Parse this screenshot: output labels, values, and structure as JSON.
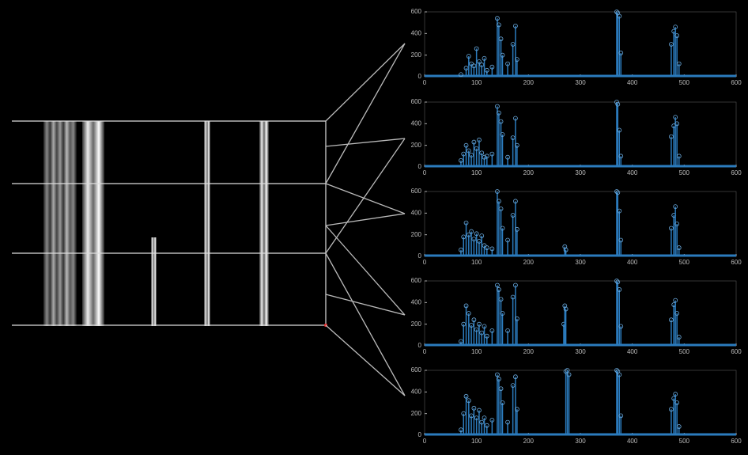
{
  "chart_data": [
    {
      "type": "stem",
      "color": "#2b7bbd",
      "x": [
        70,
        80,
        85,
        90,
        95,
        100,
        105,
        110,
        115,
        120,
        130,
        140,
        143,
        147,
        150,
        160,
        170,
        175,
        178,
        370,
        372,
        375,
        378,
        475,
        480,
        483,
        486,
        490
      ],
      "values": [
        20,
        80,
        190,
        120,
        100,
        260,
        140,
        110,
        170,
        60,
        90,
        540,
        480,
        350,
        200,
        120,
        300,
        470,
        160,
        600,
        590,
        560,
        220,
        300,
        420,
        460,
        380,
        120
      ],
      "xlim": [
        0,
        600
      ],
      "ylim": [
        0,
        600
      ],
      "xticks": [
        0,
        100,
        200,
        300,
        400,
        500,
        600
      ],
      "yticks": [
        0,
        200,
        400,
        600
      ]
    },
    {
      "type": "stem",
      "color": "#2b7bbd",
      "x": [
        70,
        75,
        80,
        85,
        90,
        95,
        100,
        105,
        110,
        115,
        120,
        130,
        140,
        143,
        147,
        150,
        160,
        170,
        175,
        178,
        370,
        372,
        375,
        378,
        475,
        480,
        483,
        486,
        490
      ],
      "values": [
        60,
        120,
        200,
        150,
        110,
        230,
        170,
        250,
        130,
        90,
        100,
        120,
        560,
        500,
        420,
        300,
        90,
        270,
        450,
        200,
        600,
        580,
        340,
        100,
        280,
        380,
        460,
        400,
        100
      ],
      "xlim": [
        0,
        600
      ],
      "ylim": [
        0,
        600
      ],
      "xticks": [
        0,
        100,
        200,
        300,
        400,
        500,
        600
      ],
      "yticks": [
        0,
        200,
        400,
        600
      ]
    },
    {
      "type": "stem",
      "color": "#2b7bbd",
      "x": [
        70,
        75,
        80,
        85,
        90,
        95,
        100,
        105,
        110,
        115,
        120,
        130,
        140,
        143,
        147,
        150,
        160,
        170,
        175,
        178,
        270,
        272,
        370,
        372,
        375,
        378,
        475,
        480,
        483,
        486,
        490
      ],
      "values": [
        60,
        180,
        310,
        200,
        230,
        160,
        210,
        140,
        190,
        100,
        80,
        70,
        600,
        510,
        440,
        260,
        150,
        380,
        510,
        250,
        90,
        60,
        600,
        590,
        420,
        150,
        260,
        380,
        460,
        300,
        80
      ],
      "xlim": [
        0,
        600
      ],
      "ylim": [
        0,
        600
      ],
      "xticks": [
        0,
        100,
        200,
        300,
        400,
        500,
        600
      ],
      "yticks": [
        0,
        200,
        400,
        600
      ]
    },
    {
      "type": "stem",
      "color": "#2b7bbd",
      "x": [
        70,
        75,
        80,
        85,
        90,
        95,
        100,
        105,
        110,
        115,
        120,
        130,
        140,
        143,
        147,
        150,
        160,
        170,
        175,
        178,
        268,
        270,
        272,
        370,
        372,
        375,
        378,
        475,
        480,
        483,
        486,
        490
      ],
      "values": [
        40,
        200,
        370,
        300,
        190,
        240,
        150,
        200,
        120,
        180,
        90,
        140,
        560,
        520,
        430,
        300,
        140,
        450,
        560,
        250,
        200,
        370,
        340,
        600,
        590,
        520,
        180,
        240,
        380,
        420,
        300,
        80
      ],
      "xlim": [
        0,
        600
      ],
      "ylim": [
        0,
        600
      ],
      "xticks": [
        0,
        100,
        200,
        300,
        400,
        500,
        600
      ],
      "yticks": [
        0,
        200,
        400,
        600
      ]
    },
    {
      "type": "stem",
      "color": "#2b7bbd",
      "x": [
        70,
        75,
        80,
        85,
        90,
        95,
        100,
        105,
        110,
        115,
        120,
        130,
        140,
        143,
        147,
        150,
        160,
        170,
        175,
        178,
        272,
        275,
        278,
        370,
        372,
        375,
        378,
        475,
        480,
        483,
        486,
        490
      ],
      "values": [
        50,
        200,
        360,
        320,
        180,
        250,
        160,
        230,
        120,
        160,
        90,
        140,
        560,
        520,
        430,
        300,
        120,
        460,
        540,
        240,
        590,
        600,
        560,
        600,
        590,
        560,
        180,
        240,
        340,
        380,
        300,
        80
      ],
      "xlim": [
        0,
        600
      ],
      "ylim": [
        0,
        600
      ],
      "xticks": [
        0,
        100,
        200,
        300,
        400,
        500,
        600
      ],
      "yticks": [
        0,
        200,
        400,
        600
      ]
    }
  ]
}
